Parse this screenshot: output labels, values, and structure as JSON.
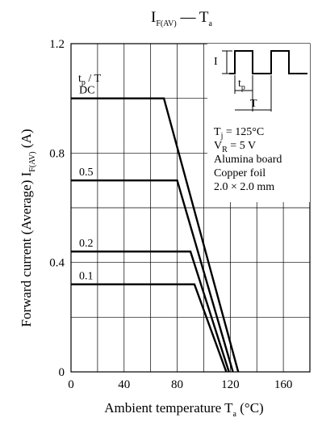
{
  "chart_data": {
    "type": "line",
    "title": {
      "main": "I",
      "sub": "F(AV)",
      "sep": " — ",
      "main2": "T",
      "sub2": "a"
    },
    "xlabel": {
      "text": "Ambient temperature  T",
      "sub": "a",
      "unit": "  (°C)"
    },
    "ylabel": {
      "text": "Forward current (Average)  I",
      "sub": "F(AV)",
      "unit": "  (A)"
    },
    "xlim": [
      0,
      180
    ],
    "ylim": [
      0,
      1.2
    ],
    "x_ticks": [
      0,
      40,
      80,
      120,
      160
    ],
    "y_ticks": [
      0,
      0.4,
      0.8,
      1.2
    ],
    "x_tick_labels": [
      "0",
      "40",
      "80",
      "120",
      "160"
    ],
    "y_tick_labels": [
      "0",
      "0.4",
      "0.8",
      "1.2"
    ],
    "grid": true,
    "legend_header": {
      "main": "t",
      "sub": "p",
      "rest": " / T"
    },
    "series": [
      {
        "name": "DC",
        "x": [
          0,
          70,
          126
        ],
        "y": [
          1.0,
          1.0,
          0
        ]
      },
      {
        "name": "0.5",
        "x": [
          0,
          80,
          122
        ],
        "y": [
          0.7,
          0.7,
          0
        ]
      },
      {
        "name": "0.2",
        "x": [
          0,
          90,
          119
        ],
        "y": [
          0.44,
          0.44,
          0
        ]
      },
      {
        "name": "0.1",
        "x": [
          0,
          93,
          117
        ],
        "y": [
          0.32,
          0.32,
          0
        ]
      }
    ],
    "conditions": [
      {
        "main": "T",
        "sub": "j",
        "rest": " = 125°C"
      },
      {
        "main": "V",
        "sub": "R",
        "rest": " = 5 V"
      },
      {
        "main": "Alumina board",
        "sub": "",
        "rest": ""
      },
      {
        "main": "Copper foil",
        "sub": "",
        "rest": ""
      },
      {
        "main": "2.0 × 2.0 mm",
        "sub": "",
        "rest": ""
      }
    ],
    "inset": {
      "amp_label": "I",
      "pulse_label": {
        "main": "t",
        "sub": "p"
      },
      "period_label": "T"
    }
  }
}
